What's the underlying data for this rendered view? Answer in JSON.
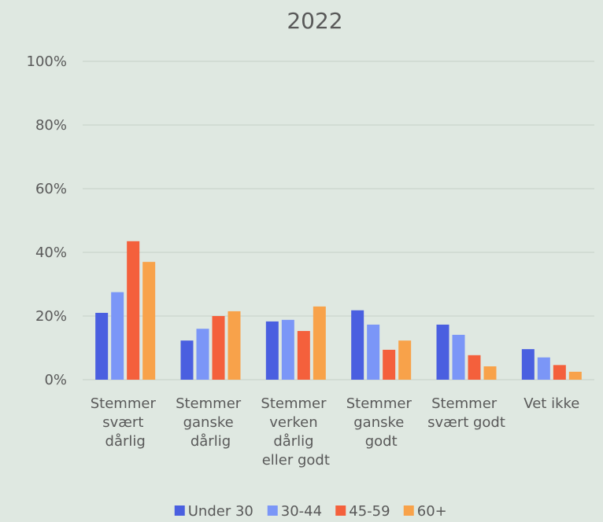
{
  "chart_data": {
    "type": "bar",
    "title": "2022",
    "categories": [
      "Stemmer svært dårlig",
      "Stemmer ganske dårlig",
      "Stemmer verken dårlig eller godt",
      "Stemmer ganske godt",
      "Stemmer svært godt",
      "Vet ikke"
    ],
    "series": [
      {
        "name": "Under 30",
        "color": "#4a5fe0",
        "values": [
          21,
          12.3,
          18.3,
          21.8,
          17.3,
          9.6
        ]
      },
      {
        "name": "30-44",
        "color": "#7b96f7",
        "values": [
          27.5,
          16,
          18.8,
          17.3,
          14.1,
          7
        ]
      },
      {
        "name": "45-59",
        "color": "#f4603c",
        "values": [
          43.5,
          20,
          15.3,
          9.4,
          7.7,
          4.6
        ]
      },
      {
        "name": "60+",
        "color": "#f8a24a",
        "values": [
          37,
          21.5,
          23,
          12.3,
          4.2,
          2.5
        ]
      }
    ],
    "ylim": [
      0,
      100
    ],
    "yticks": [
      {
        "value": 0,
        "label": "0%"
      },
      {
        "value": 20,
        "label": "20%"
      },
      {
        "value": 40,
        "label": "40%"
      },
      {
        "value": 60,
        "label": "60%"
      },
      {
        "value": 80,
        "label": "80%"
      },
      {
        "value": 100,
        "label": "100%"
      }
    ],
    "grid": true,
    "legend": "bottom"
  }
}
